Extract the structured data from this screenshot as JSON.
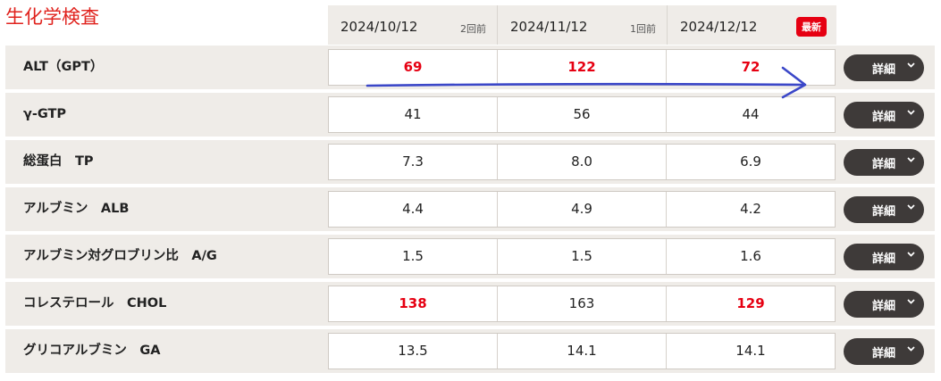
{
  "page_title": "生化学検査",
  "columns": [
    {
      "date": "2024/10/12",
      "relative": "2回前"
    },
    {
      "date": "2024/11/12",
      "relative": "1回前"
    },
    {
      "date": "2024/12/12",
      "badge": "最新"
    }
  ],
  "detail_label": "詳細",
  "rows": [
    {
      "label": "ALT（GPT）",
      "values": [
        "69",
        "122",
        "72"
      ],
      "high": [
        true,
        true,
        true
      ]
    },
    {
      "label": "γ-GTP",
      "values": [
        "41",
        "56",
        "44"
      ],
      "high": [
        false,
        false,
        false
      ]
    },
    {
      "label": "総蛋白　TP",
      "values": [
        "7.3",
        "8.0",
        "6.9"
      ],
      "high": [
        false,
        false,
        false
      ]
    },
    {
      "label": "アルブミン　ALB",
      "values": [
        "4.4",
        "4.9",
        "4.2"
      ],
      "high": [
        false,
        false,
        false
      ]
    },
    {
      "label": "アルブミン対グロブリン比　A/G",
      "values": [
        "1.5",
        "1.5",
        "1.6"
      ],
      "high": [
        false,
        false,
        false
      ]
    },
    {
      "label": "コレステロール　CHOL",
      "values": [
        "138",
        "163",
        "129"
      ],
      "high": [
        true,
        false,
        true
      ]
    },
    {
      "label": "グリコアルブミン　GA",
      "values": [
        "13.5",
        "14.1",
        "14.1"
      ],
      "high": [
        false,
        false,
        false
      ]
    }
  ],
  "colors": {
    "high_value": "#e60012",
    "title": "#e0231e",
    "annotation_arrow": "#3b47c8"
  },
  "icons": {
    "detail_chevron": "chevron-down-icon"
  }
}
